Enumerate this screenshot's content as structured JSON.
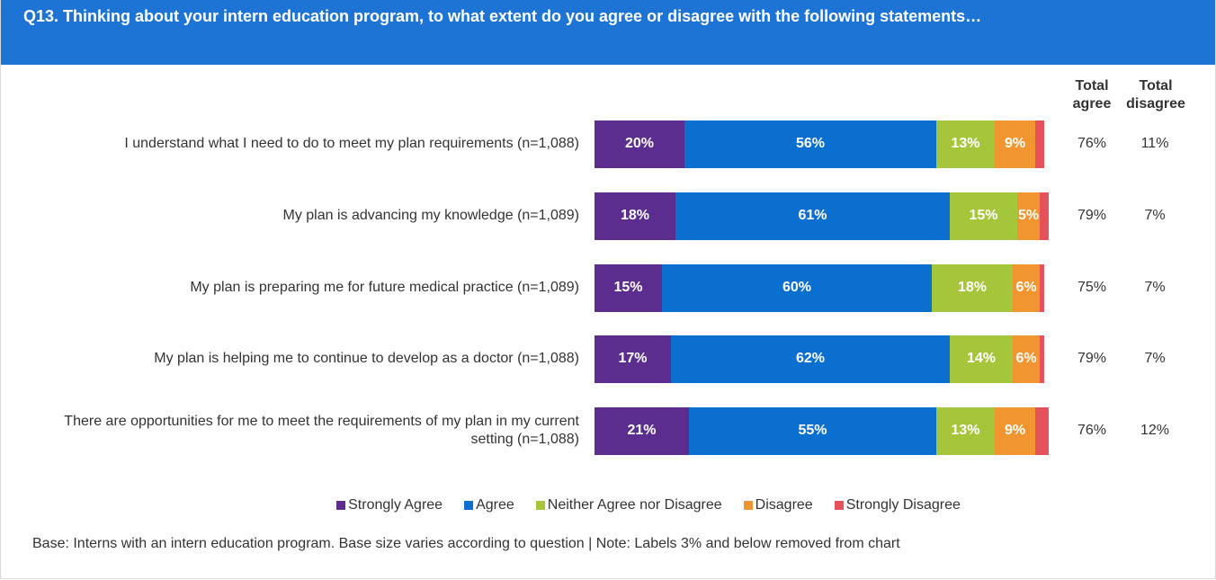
{
  "chart_data": {
    "type": "bar",
    "orientation": "horizontal",
    "stacked": true,
    "title": "Q13.  Thinking about your intern education program, to what extent do you agree or disagree with the following statements…",
    "categories": [
      "I understand what I need to do to meet my plan requirements (n=1,088)",
      "My plan is advancing my knowledge (n=1,089)",
      "My plan is preparing me for future medical practice (n=1,089)",
      "My plan is helping me to continue to develop as a doctor (n=1,088)",
      "There are opportunities for me to meet the requirements of my plan in my current setting (n=1,088)"
    ],
    "series": [
      {
        "name": "Strongly Agree",
        "color": "#5b2d8e",
        "values": [
          20,
          18,
          15,
          17,
          21
        ],
        "value_labels": [
          "20%",
          "18%",
          "15%",
          "17%",
          "21%"
        ]
      },
      {
        "name": "Agree",
        "color": "#0b6fd0",
        "values": [
          56,
          61,
          60,
          62,
          55
        ],
        "value_labels": [
          "56%",
          "61%",
          "60%",
          "62%",
          "55%"
        ]
      },
      {
        "name": "Neither Agree nor Disagree",
        "color": "#a5c63b",
        "values": [
          13,
          15,
          18,
          14,
          13
        ],
        "value_labels": [
          "13%",
          "15%",
          "18%",
          "14%",
          "13%"
        ]
      },
      {
        "name": "Disagree",
        "color": "#f0952f",
        "values": [
          9,
          5,
          6,
          6,
          9
        ],
        "value_labels": [
          "9%",
          "5%",
          "6%",
          "6%",
          "9%"
        ]
      },
      {
        "name": "Strongly Disagree",
        "color": "#e5525b",
        "values": [
          2,
          2,
          1,
          1,
          3
        ],
        "value_labels": [
          null,
          null,
          null,
          null,
          null
        ]
      }
    ],
    "xlim": [
      0,
      100
    ],
    "total_agree": {
      "title": "Total agree",
      "values": [
        76,
        79,
        75,
        79,
        76
      ],
      "value_labels": [
        "76%",
        "79%",
        "75%",
        "79%",
        "76%"
      ]
    },
    "total_disagree": {
      "title": "Total disagree",
      "values": [
        11,
        7,
        7,
        7,
        12
      ],
      "value_labels": [
        "11%",
        "7%",
        "7%",
        "7%",
        "12%"
      ]
    },
    "legend": "bottom",
    "note": "Base:   Interns with an intern education program. Base size varies according to question | Note: Labels 3% and below removed from chart"
  }
}
